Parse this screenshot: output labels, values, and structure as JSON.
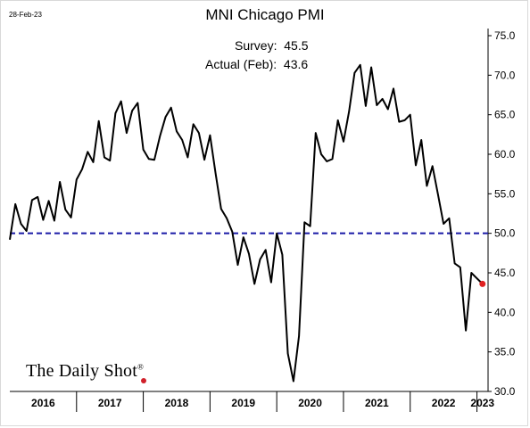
{
  "date_label": "28-Feb-23",
  "watermark": "The Daily Shot",
  "watermark_mark": "®",
  "colors": {
    "line": "#000000",
    "reference": "#1a1aa6",
    "last_point": "#e02020"
  },
  "chart_data": {
    "type": "line",
    "title": "MNI Chicago PMI",
    "annotations": [
      {
        "label": "Survey:",
        "value": "45.5"
      },
      {
        "label": "Actual (Feb):",
        "value": "43.6"
      }
    ],
    "ylim": [
      30,
      75
    ],
    "yticks": [
      "30.0",
      "35.0",
      "40.0",
      "45.0",
      "50.0",
      "55.0",
      "60.0",
      "65.0",
      "70.0",
      "75.0"
    ],
    "xticks": [
      "2016",
      "2017",
      "2018",
      "2019",
      "2020",
      "2021",
      "2022",
      "2023"
    ],
    "xlim": [
      "2016-01",
      "2023-03"
    ],
    "reference_line": {
      "y": 50,
      "style": "dashed"
    },
    "grid": false,
    "series": [
      {
        "x": [
          "2016-01",
          "2016-02",
          "2016-03",
          "2016-04",
          "2016-05",
          "2016-06",
          "2016-07",
          "2016-08",
          "2016-09",
          "2016-10",
          "2016-11",
          "2016-12",
          "2017-01",
          "2017-02",
          "2017-03",
          "2017-04",
          "2017-05",
          "2017-06",
          "2017-07",
          "2017-08",
          "2017-09",
          "2017-10",
          "2017-11",
          "2017-12",
          "2018-01",
          "2018-02",
          "2018-03",
          "2018-04",
          "2018-05",
          "2018-06",
          "2018-07",
          "2018-08",
          "2018-09",
          "2018-10",
          "2018-11",
          "2018-12",
          "2019-01",
          "2019-02",
          "2019-03",
          "2019-04",
          "2019-05",
          "2019-06",
          "2019-07",
          "2019-08",
          "2019-09",
          "2019-10",
          "2019-11",
          "2019-12",
          "2020-01",
          "2020-02",
          "2020-03",
          "2020-04",
          "2020-05",
          "2020-06",
          "2020-07",
          "2020-08",
          "2020-09",
          "2020-10",
          "2020-11",
          "2020-12",
          "2021-01",
          "2021-02",
          "2021-03",
          "2021-04",
          "2021-05",
          "2021-06",
          "2021-07",
          "2021-08",
          "2021-09",
          "2021-10",
          "2021-11",
          "2021-12",
          "2022-01",
          "2022-02",
          "2022-03",
          "2022-04",
          "2022-05",
          "2022-06",
          "2022-07",
          "2022-08",
          "2022-09",
          "2022-10",
          "2022-11",
          "2022-12",
          "2023-01",
          "2023-02"
        ],
        "values": [
          49.2,
          53.7,
          51.2,
          50.3,
          54.2,
          54.6,
          51.7,
          54.1,
          51.6,
          56.5,
          53.0,
          52.0,
          56.8,
          58.1,
          60.3,
          59.0,
          64.2,
          59.6,
          59.2,
          65.2,
          66.7,
          62.7,
          65.5,
          66.5,
          60.6,
          59.4,
          59.3,
          62.3,
          64.7,
          65.9,
          62.9,
          61.8,
          59.6,
          63.8,
          62.7,
          59.3,
          62.4,
          57.6,
          53.1,
          51.9,
          50.2,
          46.0,
          49.5,
          47.4,
          43.6,
          46.7,
          47.9,
          43.8,
          50.0,
          47.3,
          34.8,
          31.3,
          37.0,
          51.4,
          50.9,
          62.7,
          60.0,
          59.1,
          59.4,
          64.3,
          61.6,
          65.4,
          70.3,
          71.3,
          66.1,
          71.0,
          66.2,
          67.0,
          65.7,
          68.3,
          64.1,
          64.3,
          65.0,
          58.6,
          61.8,
          56.0,
          58.5,
          54.9,
          51.2,
          51.9,
          46.2,
          45.7,
          37.7,
          45.0,
          44.3,
          43.6
        ]
      }
    ]
  }
}
